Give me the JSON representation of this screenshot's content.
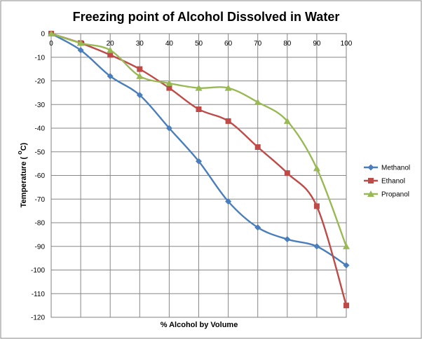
{
  "chart_data": {
    "type": "line",
    "title": "Freezing point of Alcohol Dissolved in Water",
    "xlabel": "% Alcohol by Volume",
    "ylabel": "Temperature",
    "ylabel_sup": "o",
    "ylabel_unit": "C",
    "xlim": [
      0,
      100
    ],
    "ylim": [
      -120,
      0
    ],
    "x_ticks": [
      0,
      10,
      20,
      30,
      40,
      50,
      60,
      70,
      80,
      90,
      100
    ],
    "y_ticks": [
      0,
      -10,
      -20,
      -30,
      -40,
      -50,
      -60,
      -70,
      -80,
      -90,
      -100,
      -110,
      -120
    ],
    "grid": true,
    "legend_position": "right",
    "x": [
      0,
      10,
      20,
      30,
      40,
      50,
      60,
      70,
      80,
      90,
      100
    ],
    "series": [
      {
        "name": "Methanol",
        "color": "#4a7ebb",
        "marker": "diamond",
        "values": [
          0,
          -7,
          -18,
          -26,
          -40,
          -54,
          -71,
          -82,
          -87,
          -90,
          -98
        ]
      },
      {
        "name": "Ethanol",
        "color": "#be4b48",
        "marker": "square",
        "values": [
          0,
          -4,
          -9,
          -15,
          -23,
          -32,
          -37,
          -48,
          -59,
          -73,
          -115
        ]
      },
      {
        "name": "Propanol",
        "color": "#98b954",
        "marker": "triangle",
        "values": [
          0,
          -4,
          -7,
          -18,
          -21,
          -23,
          -23,
          -29,
          -37,
          -57,
          -90
        ]
      }
    ]
  }
}
